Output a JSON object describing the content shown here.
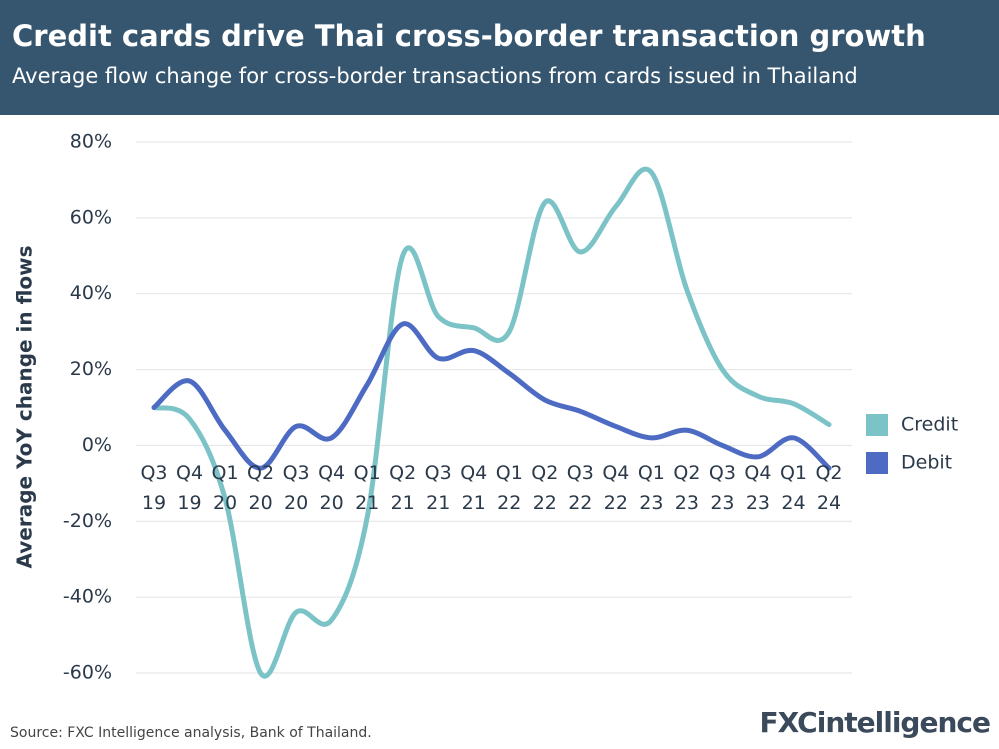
{
  "chart_data": {
    "type": "line",
    "title": "Credit cards drive Thai cross-border transaction growth",
    "subtitle": "Average flow change for cross-border transactions from cards issued in Thailand",
    "y_label": "Average YoY change in flows",
    "categories": [
      "Q3 19",
      "Q4 19",
      "Q1 20",
      "Q2 20",
      "Q3 20",
      "Q4 20",
      "Q1 21",
      "Q2 21",
      "Q3 21",
      "Q4 21",
      "Q1 22",
      "Q2 22",
      "Q3 22",
      "Q4 22",
      "Q1 23",
      "Q2 23",
      "Q3 23",
      "Q4 23",
      "Q1 24",
      "Q2 24"
    ],
    "series": [
      {
        "name": "Credit",
        "color": "#7cc3c8",
        "values": [
          10,
          7,
          -14,
          -60,
          -44,
          -46,
          -19,
          50,
          34,
          31,
          30,
          64,
          51,
          63,
          72,
          41,
          20,
          13,
          11,
          5.5
        ]
      },
      {
        "name": "Debit",
        "color": "#4e6bc4",
        "values": [
          10,
          17,
          4,
          -6,
          5,
          2,
          16,
          32,
          23,
          25,
          19,
          12,
          9,
          5,
          2,
          4,
          0,
          -3,
          2,
          -6
        ]
      }
    ],
    "ylim": [
      -60,
      80
    ],
    "yticks": [
      {
        "value": -60,
        "label": "-60%"
      },
      {
        "value": -40,
        "label": "-40%"
      },
      {
        "value": -20,
        "label": "-20%"
      },
      {
        "value": 0,
        "label": "0%"
      },
      {
        "value": 20,
        "label": "20%"
      },
      {
        "value": 40,
        "label": "40%"
      },
      {
        "value": 60,
        "label": "60%"
      },
      {
        "value": 80,
        "label": "80%"
      }
    ],
    "grid": true
  },
  "source": "Source: FXC Intelligence analysis, Bank of Thailand.",
  "logo": "FXCintelligence"
}
